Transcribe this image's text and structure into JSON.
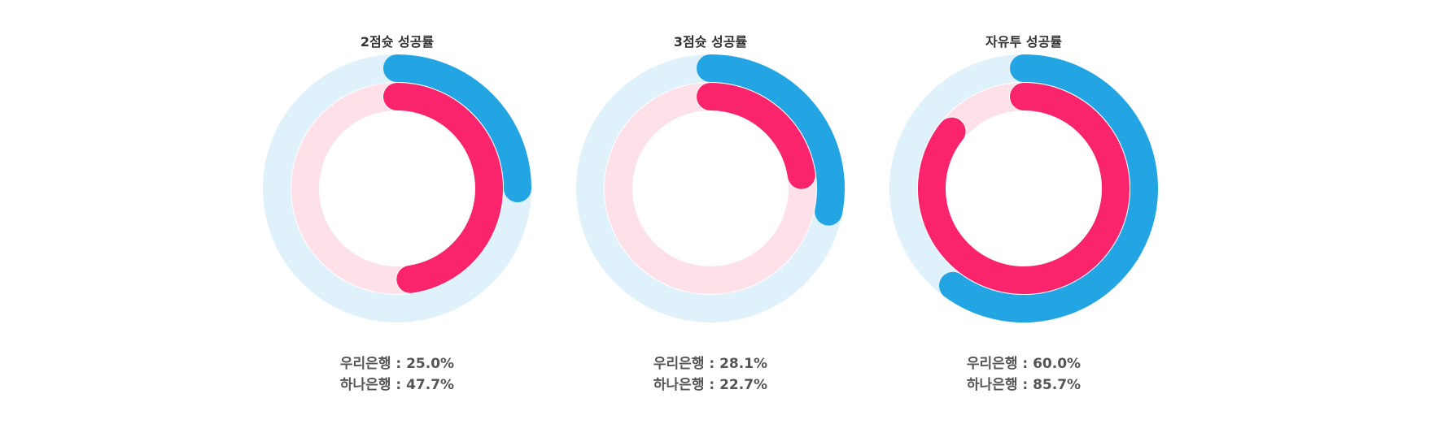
{
  "colors": {
    "woori": "#23a4e3",
    "woori_track": "#dff1fa",
    "hana": "#f9246c",
    "hana_track": "#fde0e8"
  },
  "chart_data": [
    {
      "type": "radial-bar",
      "title": "2점슛 성공률",
      "series": [
        {
          "name": "우리은행",
          "value": 25.0
        },
        {
          "name": "하나은행",
          "value": 47.7
        }
      ],
      "max": 100
    },
    {
      "type": "radial-bar",
      "title": "3점슛 성공률",
      "series": [
        {
          "name": "우리은행",
          "value": 28.1
        },
        {
          "name": "하나은행",
          "value": 22.7
        }
      ],
      "max": 100
    },
    {
      "type": "radial-bar",
      "title": "자유투 성공률",
      "series": [
        {
          "name": "우리은행",
          "value": 60.0
        },
        {
          "name": "하나은행",
          "value": 85.7
        }
      ],
      "max": 100
    }
  ],
  "labels": [
    {
      "woori": "우리은행 : 25.0%",
      "hana": "하나은행 : 47.7%"
    },
    {
      "woori": "우리은행 : 28.1%",
      "hana": "하나은행 : 22.7%"
    },
    {
      "woori": "우리은행 : 60.0%",
      "hana": "하나은행 : 85.7%"
    }
  ]
}
